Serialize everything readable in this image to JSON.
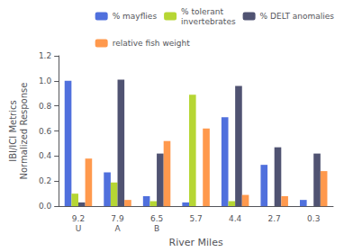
{
  "chart_data": {
    "type": "bar",
    "categories": [
      "9.2\nU",
      "7.9\nA",
      "6.5\nB",
      "5.7",
      "4.4",
      "2.7",
      "0.3"
    ],
    "series": [
      {
        "name": "% mayflies",
        "values": [
          1.0,
          0.27,
          0.08,
          0.03,
          0.71,
          0.33,
          0.05
        ]
      },
      {
        "name": "% tolerant\ninvertebrates",
        "values": [
          0.1,
          0.19,
          0.04,
          0.89,
          0.04,
          0.0,
          0.0
        ]
      },
      {
        "name": "% DELT anomalies",
        "values": [
          0.03,
          1.01,
          0.42,
          0.0,
          0.96,
          0.47,
          0.42
        ]
      },
      {
        "name": "relative fish weight",
        "values": [
          0.38,
          0.05,
          0.52,
          0.62,
          0.09,
          0.08,
          0.28
        ]
      }
    ],
    "xlabel": "River Miles",
    "ylabel": "IBI/ICI Metrics\nNormalized Response",
    "ylim": [
      0,
      1.2
    ],
    "yticks": [
      {
        "value": 0,
        "label": "0.0"
      },
      0.2,
      0.4,
      0.6,
      0.8,
      {
        "value": 1,
        "label": "1.0"
      },
      1.2
    ],
    "grid": false,
    "legend": "upper right"
  }
}
